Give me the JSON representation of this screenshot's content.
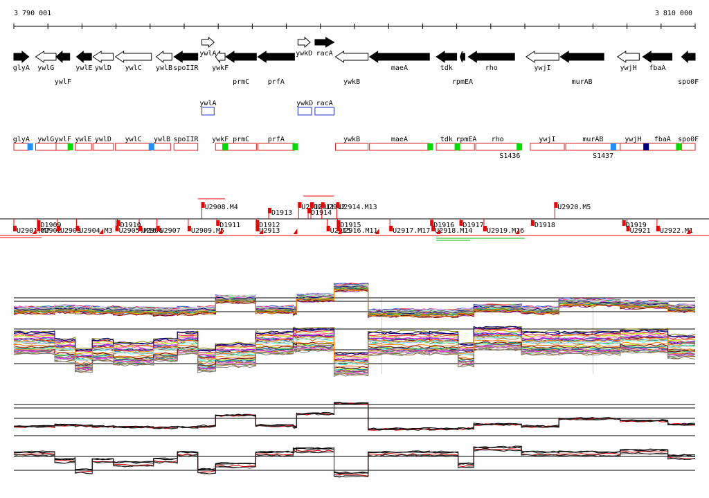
{
  "ruler": {
    "start_label": "3 790 001",
    "end_label": "3 810 000"
  },
  "genes": [
    {
      "name": "glyA",
      "filled": true,
      "dir": "right",
      "start": 0.0,
      "end": 0.022,
      "label_row": 1
    },
    {
      "name": "ywlG",
      "filled": false,
      "dir": "left",
      "start": 0.032,
      "end": 0.062,
      "label_row": 1
    },
    {
      "name": "ywlF",
      "filled": true,
      "dir": "left",
      "start": 0.062,
      "end": 0.082,
      "label_row": 2
    },
    {
      "name": "ywlE",
      "filled": true,
      "dir": "left",
      "start": 0.092,
      "end": 0.114,
      "label_row": 1
    },
    {
      "name": "ywlD",
      "filled": false,
      "dir": "left",
      "start": 0.116,
      "end": 0.146,
      "label_row": 1
    },
    {
      "name": "ywlC",
      "filled": false,
      "dir": "left",
      "start": 0.149,
      "end": 0.202,
      "label_row": 1
    },
    {
      "name": "ywlB",
      "filled": false,
      "dir": "left",
      "start": 0.209,
      "end": 0.232,
      "label_row": 1
    },
    {
      "name": "spoIIR",
      "filled": true,
      "dir": "left",
      "start": 0.235,
      "end": 0.27,
      "label_row": 1
    },
    {
      "name": "ywlA",
      "filled": false,
      "dir": "right",
      "start": 0.276,
      "end": 0.294,
      "label_row": 1,
      "upper": true
    },
    {
      "name": "ywkF",
      "filled": false,
      "dir": "left",
      "start": 0.296,
      "end": 0.31,
      "label_row": 1
    },
    {
      "name": "prmC",
      "filled": true,
      "dir": "left",
      "start": 0.311,
      "end": 0.356,
      "label_row": 2
    },
    {
      "name": "prfA",
      "filled": true,
      "dir": "left",
      "start": 0.358,
      "end": 0.412,
      "label_row": 2
    },
    {
      "name": "ywkD",
      "filled": false,
      "dir": "right",
      "start": 0.417,
      "end": 0.435,
      "label_row": 1,
      "upper": true
    },
    {
      "name": "racA",
      "filled": true,
      "dir": "right",
      "start": 0.442,
      "end": 0.47,
      "label_row": 1,
      "upper": true
    },
    {
      "name": "ywkB",
      "filled": false,
      "dir": "left",
      "start": 0.472,
      "end": 0.52,
      "label_row": 2
    },
    {
      "name": "maeA",
      "filled": true,
      "dir": "left",
      "start": 0.522,
      "end": 0.61,
      "label_row": 1
    },
    {
      "name": "tdk",
      "filled": true,
      "dir": "left",
      "start": 0.62,
      "end": 0.65,
      "label_row": 1
    },
    {
      "name": "rpmEA",
      "filled": true,
      "dir": "left",
      "start": 0.655,
      "end": 0.662,
      "label_row": 2
    },
    {
      "name": "rho",
      "filled": true,
      "dir": "left",
      "start": 0.667,
      "end": 0.735,
      "label_row": 1
    },
    {
      "name": "ywjI",
      "filled": false,
      "dir": "left",
      "start": 0.752,
      "end": 0.8,
      "label_row": 1
    },
    {
      "name": "murAB",
      "filled": true,
      "dir": "left",
      "start": 0.802,
      "end": 0.866,
      "label_row": 2
    },
    {
      "name": "ywjH",
      "filled": false,
      "dir": "left",
      "start": 0.886,
      "end": 0.918,
      "label_row": 1
    },
    {
      "name": "fbaA",
      "filled": true,
      "dir": "left",
      "start": 0.923,
      "end": 0.966,
      "label_row": 1
    },
    {
      "name": "spo0F",
      "filled": true,
      "dir": "left",
      "start": 0.98,
      "end": 1.0,
      "label_row": 2
    }
  ],
  "upper_boxes": [
    {
      "label": "ywlA",
      "start": 0.276,
      "end": 0.294
    },
    {
      "label": "ywkD",
      "start": 0.417,
      "end": 0.437
    },
    {
      "label": "racA",
      "start": 0.442,
      "end": 0.47
    }
  ],
  "gene_boxes": [
    {
      "label": "glyA",
      "start": 0.0,
      "end": 0.022
    },
    {
      "label": "ywlG",
      "start": 0.032,
      "end": 0.062
    },
    {
      "label": "ywlF",
      "start": 0.062,
      "end": 0.082
    },
    {
      "label": "ywlE",
      "start": 0.09,
      "end": 0.114
    },
    {
      "label": "ywlD",
      "start": 0.116,
      "end": 0.146
    },
    {
      "label": "ywlC",
      "start": 0.149,
      "end": 0.202
    },
    {
      "label": "ywlB",
      "start": 0.205,
      "end": 0.23
    },
    {
      "label": "spoIIR",
      "start": 0.235,
      "end": 0.27
    },
    {
      "label": "ywkF",
      "start": 0.296,
      "end": 0.31
    },
    {
      "label": "prmC",
      "start": 0.311,
      "end": 0.356
    },
    {
      "label": "prfA",
      "start": 0.358,
      "end": 0.412
    },
    {
      "label": "ywkB",
      "start": 0.472,
      "end": 0.52
    },
    {
      "label": "maeA",
      "start": 0.522,
      "end": 0.61
    },
    {
      "label": "tdk",
      "start": 0.62,
      "end": 0.65
    },
    {
      "label": "rpmEA",
      "start": 0.652,
      "end": 0.676
    },
    {
      "label": "rho",
      "start": 0.678,
      "end": 0.742
    },
    {
      "label": "ywjI",
      "start": 0.758,
      "end": 0.808
    },
    {
      "label": "murAB",
      "start": 0.81,
      "end": 0.89
    },
    {
      "label": "ywjH",
      "start": 0.89,
      "end": 0.928
    },
    {
      "label": "fbaA",
      "start": 0.928,
      "end": 0.976
    },
    {
      "label": "spo0F",
      "start": 0.98,
      "end": 1.0
    }
  ],
  "box_markers": [
    {
      "pos": 0.024,
      "color": "#1e90ff"
    },
    {
      "pos": 0.083,
      "color": "#00dd00"
    },
    {
      "pos": 0.202,
      "color": "#1e90ff"
    },
    {
      "pos": 0.31,
      "color": "#00dd00"
    },
    {
      "pos": 0.413,
      "color": "#00dd00"
    },
    {
      "pos": 0.611,
      "color": "#00dd00"
    },
    {
      "pos": 0.651,
      "color": "#00dd00"
    },
    {
      "pos": 0.742,
      "color": "#00dd00"
    },
    {
      "pos": 0.88,
      "color": "#1e90ff"
    },
    {
      "pos": 0.928,
      "color": "#00008b"
    },
    {
      "pos": 0.976,
      "color": "#00dd00"
    }
  ],
  "box_labels_below": [
    {
      "label": "S1436",
      "pos": 0.728
    },
    {
      "label": "S1437",
      "pos": 0.865
    }
  ],
  "features": [
    {
      "label": "U2908.M4",
      "pos": 0.276,
      "row": 0
    },
    {
      "label": "D1913",
      "pos": 0.374,
      "row": 1
    },
    {
      "label": "U2910",
      "pos": 0.418,
      "row": 0
    },
    {
      "label": "U2911",
      "pos": 0.436,
      "row": 0
    },
    {
      "label": "U2912",
      "pos": 0.452,
      "row": 0
    },
    {
      "label": "D1914",
      "pos": 0.432,
      "row": 1
    },
    {
      "label": "U2914.M13",
      "pos": 0.474,
      "row": 0
    },
    {
      "label": "U2920.M5",
      "pos": 0.794,
      "row": 0
    },
    {
      "label": "U2901.M7",
      "pos": 0.0,
      "row": 2
    },
    {
      "label": "U2902",
      "pos": 0.035,
      "row": 2
    },
    {
      "label": "U2903",
      "pos": 0.064,
      "row": 2
    },
    {
      "label": "U2904.M3",
      "pos": 0.092,
      "row": 2
    },
    {
      "label": "U2905.M16",
      "pos": 0.15,
      "row": 2
    },
    {
      "label": "U2906",
      "pos": 0.184,
      "row": 2
    },
    {
      "label": "U2907",
      "pos": 0.21,
      "row": 2
    },
    {
      "label": "U2909.M5",
      "pos": 0.256,
      "row": 2
    },
    {
      "label": "U2913",
      "pos": 0.356,
      "row": 2
    },
    {
      "label": "U2915",
      "pos": 0.46,
      "row": 2
    },
    {
      "label": "U2916.M11",
      "pos": 0.475,
      "row": 2
    },
    {
      "label": "U2917.M17",
      "pos": 0.552,
      "row": 2
    },
    {
      "label": "U2918.M14",
      "pos": 0.614,
      "row": 2
    },
    {
      "label": "U2919.M16",
      "pos": 0.69,
      "row": 2
    },
    {
      "label": "U2921",
      "pos": 0.9,
      "row": 2
    },
    {
      "label": "U2922.M1",
      "pos": 0.944,
      "row": 2
    },
    {
      "label": "D1909",
      "pos": 0.035,
      "row": 1.5
    },
    {
      "label": "D1910",
      "pos": 0.152,
      "row": 1.5
    },
    {
      "label": "D1911",
      "pos": 0.298,
      "row": 1.5
    },
    {
      "label": "D1912",
      "pos": 0.356,
      "row": 1.5
    },
    {
      "label": "D1915",
      "pos": 0.475,
      "row": 1.5
    },
    {
      "label": "D1916",
      "pos": 0.612,
      "row": 1.5
    },
    {
      "label": "D1917",
      "pos": 0.655,
      "row": 1.5
    },
    {
      "label": "D1918",
      "pos": 0.76,
      "row": 1.5
    },
    {
      "label": "D1919",
      "pos": 0.894,
      "row": 1.5
    }
  ],
  "colors": {
    "arrow_fill": "#000000",
    "box_stroke": "#dd2222",
    "upper_box_stroke": "#2233cc",
    "feature": "#ee0000",
    "bottom_lines": [
      "#000000",
      "#222222",
      "#444444",
      "#dd0000"
    ]
  }
}
